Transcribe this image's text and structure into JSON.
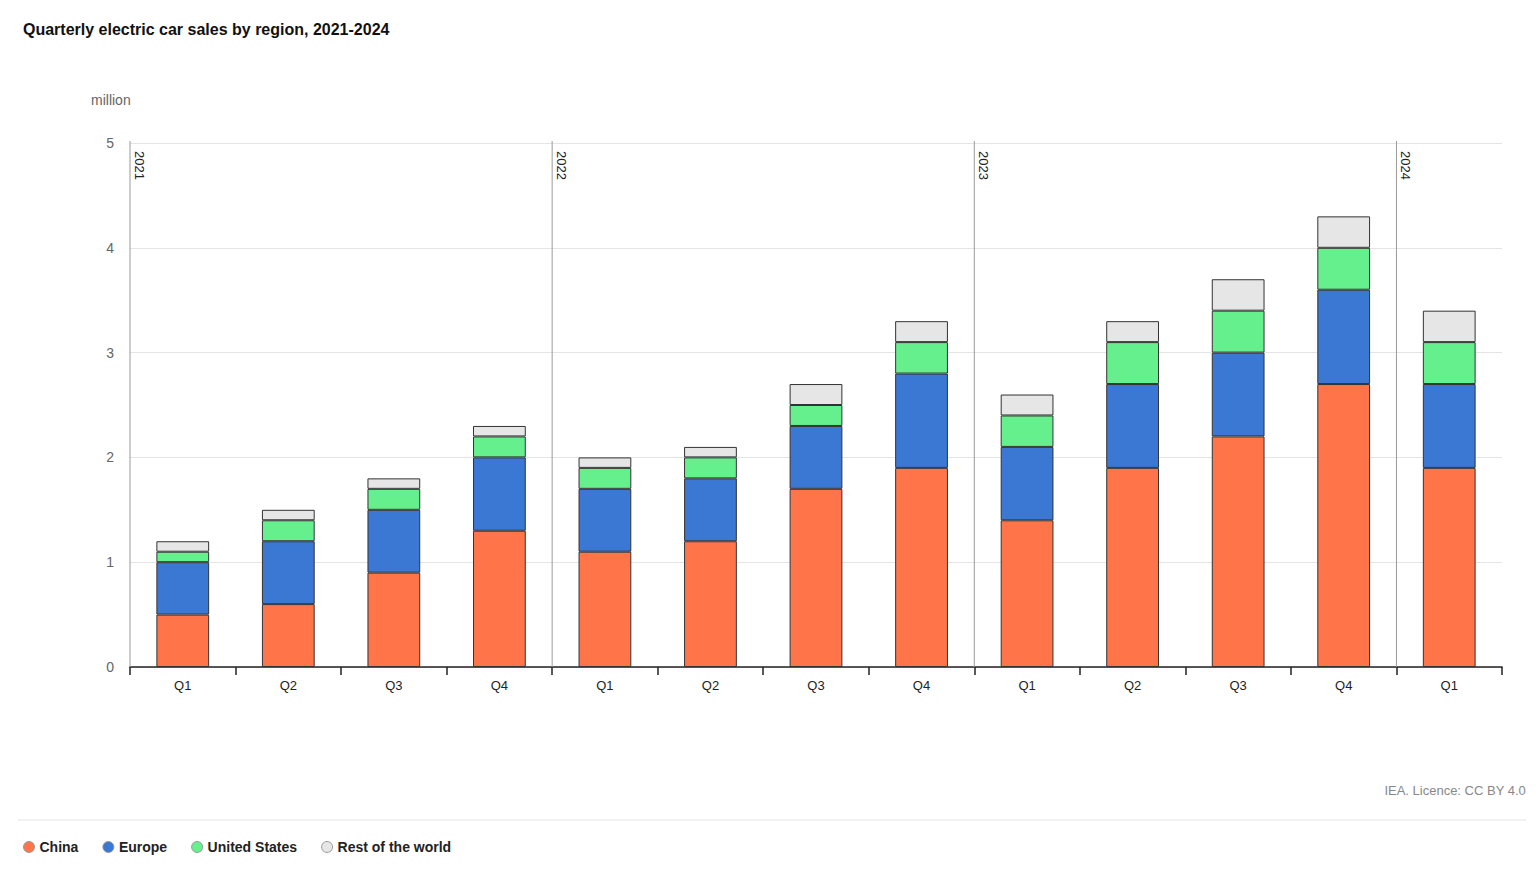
{
  "chart_data": {
    "type": "bar",
    "title": "Quarterly electric car sales by region, 2021-2024",
    "y_label": "million",
    "source": "IEA. Licence: CC BY 4.0",
    "annotations": [
      "2021",
      "2022",
      "2023",
      "2024"
    ],
    "categories": [
      "Q1",
      "Q2",
      "Q3",
      "Q4",
      "Q1",
      "Q2",
      "Q3",
      "Q4",
      "Q1",
      "Q2",
      "Q3",
      "Q4",
      "Q1"
    ],
    "series": [
      {
        "name": "China",
        "color": "#ff7549",
        "values": [
          0.5,
          0.6,
          0.9,
          1.3,
          1.1,
          1.2,
          1.7,
          1.9,
          1.4,
          1.9,
          2.2,
          2.7,
          1.9
        ]
      },
      {
        "name": "Europe",
        "color": "#3a78d4",
        "values": [
          0.5,
          0.6,
          0.6,
          0.7,
          0.6,
          0.6,
          0.6,
          0.9,
          0.7,
          0.8,
          0.8,
          0.9,
          0.8
        ]
      },
      {
        "name": "United States",
        "color": "#66f08d",
        "values": [
          0.1,
          0.2,
          0.2,
          0.2,
          0.2,
          0.2,
          0.2,
          0.3,
          0.3,
          0.4,
          0.4,
          0.4,
          0.4
        ]
      },
      {
        "name": "Rest of the world",
        "color": "#e6e6e6",
        "values": [
          0.1,
          0.1,
          0.1,
          0.1,
          0.1,
          0.1,
          0.2,
          0.2,
          0.2,
          0.2,
          0.3,
          0.3,
          0.3
        ]
      }
    ],
    "ylim": [
      0,
      5
    ],
    "yticks": [
      0,
      1,
      2,
      3,
      4,
      5
    ],
    "grid": true,
    "stacked": true,
    "legend": "bottom-left"
  }
}
